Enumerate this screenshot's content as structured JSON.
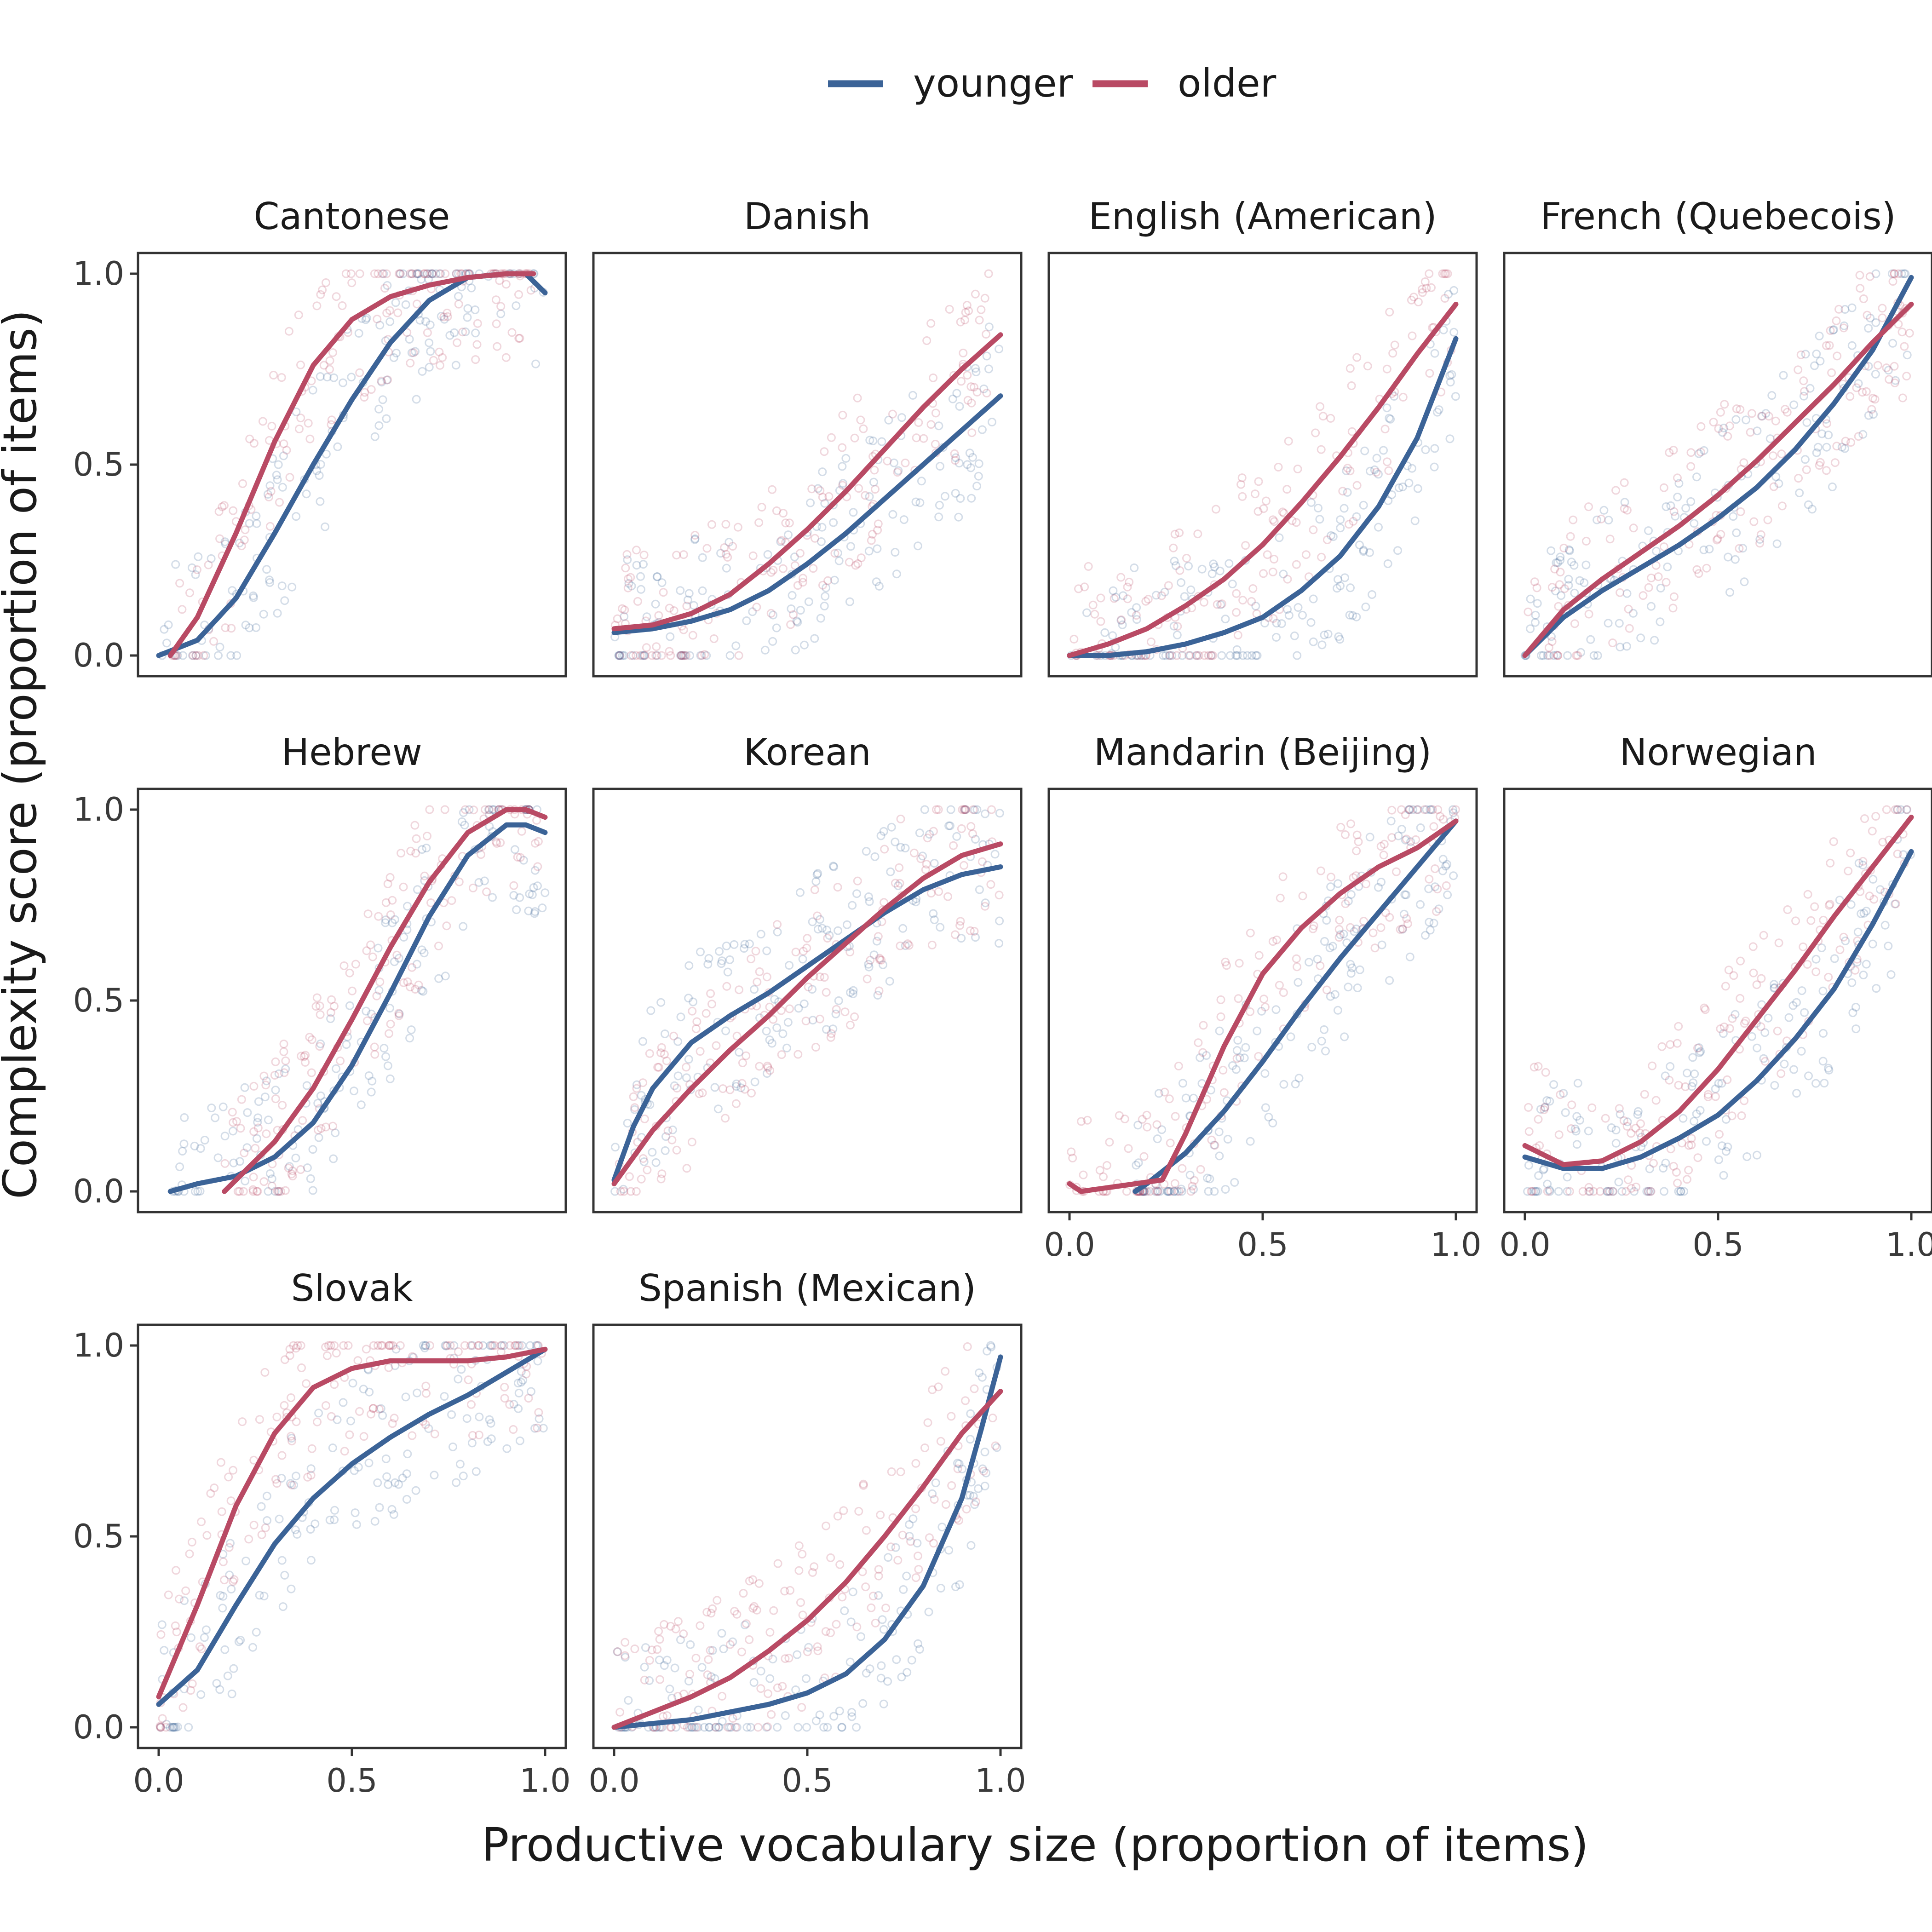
{
  "colors": {
    "younger": "#3b6397",
    "older": "#b94a64",
    "frame": "#333333"
  },
  "legend": {
    "position": "top-center",
    "items": [
      {
        "key": "younger",
        "label": "younger"
      },
      {
        "key": "older",
        "label": "older"
      }
    ]
  },
  "chart_data": {
    "type": "scatter",
    "facet_layout": {
      "columns": 4,
      "rows": 3
    },
    "xlabel": "Productive vocabulary size (proportion of items)",
    "ylabel": "Complexity score (proportion of items)",
    "xlim": [
      0,
      1
    ],
    "ylim": [
      0,
      1
    ],
    "x_ticks": [
      "0.0",
      "0.5",
      "1.0"
    ],
    "y_ticks": [
      "0.0",
      "0.5",
      "1.0"
    ],
    "grid": false,
    "points_note": "Each panel also shows many semi-transparent open-circle points per group; the fitted curves below summarize them.",
    "panels": [
      {
        "title": "Cantonese",
        "series": [
          {
            "name": "younger",
            "x": [
              0.0,
              0.1,
              0.2,
              0.3,
              0.4,
              0.5,
              0.6,
              0.7,
              0.8,
              0.9,
              0.95,
              1.0
            ],
            "y": [
              0.0,
              0.04,
              0.15,
              0.32,
              0.5,
              0.67,
              0.82,
              0.93,
              0.99,
              1.0,
              1.0,
              0.95
            ]
          },
          {
            "name": "older",
            "x": [
              0.03,
              0.1,
              0.2,
              0.3,
              0.4,
              0.5,
              0.6,
              0.7,
              0.8,
              0.9,
              0.97
            ],
            "y": [
              0.0,
              0.1,
              0.32,
              0.56,
              0.76,
              0.88,
              0.94,
              0.97,
              0.99,
              1.0,
              1.0
            ]
          }
        ]
      },
      {
        "title": "Danish",
        "series": [
          {
            "name": "younger",
            "x": [
              0.0,
              0.1,
              0.2,
              0.3,
              0.4,
              0.5,
              0.6,
              0.7,
              0.8,
              0.9,
              1.0
            ],
            "y": [
              0.06,
              0.07,
              0.09,
              0.12,
              0.17,
              0.24,
              0.32,
              0.41,
              0.5,
              0.59,
              0.68
            ]
          },
          {
            "name": "older",
            "x": [
              0.0,
              0.1,
              0.2,
              0.3,
              0.4,
              0.5,
              0.6,
              0.7,
              0.8,
              0.9,
              1.0
            ],
            "y": [
              0.07,
              0.08,
              0.11,
              0.16,
              0.24,
              0.33,
              0.43,
              0.54,
              0.65,
              0.75,
              0.84
            ]
          }
        ]
      },
      {
        "title": "English (American)",
        "series": [
          {
            "name": "younger",
            "x": [
              0.0,
              0.1,
              0.2,
              0.3,
              0.4,
              0.5,
              0.6,
              0.7,
              0.8,
              0.9,
              1.0
            ],
            "y": [
              0.0,
              0.0,
              0.01,
              0.03,
              0.06,
              0.1,
              0.17,
              0.26,
              0.39,
              0.57,
              0.83
            ]
          },
          {
            "name": "older",
            "x": [
              0.0,
              0.1,
              0.2,
              0.3,
              0.4,
              0.5,
              0.6,
              0.7,
              0.8,
              0.9,
              1.0
            ],
            "y": [
              0.0,
              0.03,
              0.07,
              0.13,
              0.2,
              0.29,
              0.4,
              0.52,
              0.65,
              0.79,
              0.92
            ]
          }
        ]
      },
      {
        "title": "French (Quebecois)",
        "series": [
          {
            "name": "younger",
            "x": [
              0.0,
              0.1,
              0.2,
              0.3,
              0.4,
              0.5,
              0.6,
              0.7,
              0.8,
              0.9,
              1.0
            ],
            "y": [
              0.0,
              0.1,
              0.17,
              0.23,
              0.29,
              0.36,
              0.44,
              0.54,
              0.66,
              0.8,
              0.99
            ]
          },
          {
            "name": "older",
            "x": [
              0.0,
              0.1,
              0.2,
              0.3,
              0.4,
              0.5,
              0.6,
              0.7,
              0.8,
              0.9,
              1.0
            ],
            "y": [
              0.0,
              0.12,
              0.2,
              0.27,
              0.34,
              0.42,
              0.51,
              0.61,
              0.71,
              0.82,
              0.92
            ]
          }
        ]
      },
      {
        "title": "Hebrew",
        "series": [
          {
            "name": "younger",
            "x": [
              0.03,
              0.1,
              0.2,
              0.3,
              0.4,
              0.5,
              0.6,
              0.7,
              0.8,
              0.9,
              0.95,
              1.0
            ],
            "y": [
              0.0,
              0.02,
              0.04,
              0.09,
              0.18,
              0.33,
              0.52,
              0.72,
              0.88,
              0.96,
              0.96,
              0.94
            ]
          },
          {
            "name": "older",
            "x": [
              0.17,
              0.2,
              0.3,
              0.4,
              0.5,
              0.6,
              0.7,
              0.8,
              0.9,
              0.95,
              1.0
            ],
            "y": [
              0.0,
              0.03,
              0.13,
              0.27,
              0.45,
              0.64,
              0.81,
              0.94,
              1.0,
              1.0,
              0.98
            ]
          }
        ]
      },
      {
        "title": "Korean",
        "series": [
          {
            "name": "younger",
            "x": [
              0.0,
              0.05,
              0.1,
              0.2,
              0.3,
              0.4,
              0.5,
              0.6,
              0.7,
              0.8,
              0.9,
              1.0
            ],
            "y": [
              0.03,
              0.17,
              0.27,
              0.39,
              0.46,
              0.52,
              0.59,
              0.66,
              0.73,
              0.79,
              0.83,
              0.85
            ]
          },
          {
            "name": "older",
            "x": [
              0.0,
              0.1,
              0.2,
              0.3,
              0.4,
              0.5,
              0.6,
              0.7,
              0.8,
              0.9,
              1.0
            ],
            "y": [
              0.02,
              0.16,
              0.27,
              0.37,
              0.46,
              0.56,
              0.65,
              0.74,
              0.82,
              0.88,
              0.91
            ]
          }
        ]
      },
      {
        "title": "Mandarin (Beijing)",
        "series": [
          {
            "name": "younger",
            "x": [
              0.17,
              0.2,
              0.3,
              0.4,
              0.5,
              0.6,
              0.7,
              0.8,
              0.9,
              1.0
            ],
            "y": [
              0.0,
              0.02,
              0.1,
              0.21,
              0.34,
              0.48,
              0.61,
              0.73,
              0.85,
              0.97
            ]
          },
          {
            "name": "older",
            "x": [
              0.0,
              0.03,
              0.24,
              0.3,
              0.4,
              0.5,
              0.6,
              0.7,
              0.8,
              0.9,
              1.0
            ],
            "y": [
              0.02,
              0.0,
              0.03,
              0.15,
              0.38,
              0.57,
              0.69,
              0.78,
              0.85,
              0.9,
              0.97
            ]
          }
        ]
      },
      {
        "title": "Norwegian",
        "series": [
          {
            "name": "younger",
            "x": [
              0.0,
              0.1,
              0.2,
              0.3,
              0.4,
              0.5,
              0.6,
              0.7,
              0.8,
              0.9,
              1.0
            ],
            "y": [
              0.09,
              0.06,
              0.06,
              0.09,
              0.14,
              0.2,
              0.29,
              0.4,
              0.53,
              0.7,
              0.89
            ]
          },
          {
            "name": "older",
            "x": [
              0.0,
              0.1,
              0.2,
              0.3,
              0.4,
              0.5,
              0.6,
              0.7,
              0.8,
              0.9,
              1.0
            ],
            "y": [
              0.12,
              0.07,
              0.08,
              0.13,
              0.21,
              0.32,
              0.45,
              0.58,
              0.72,
              0.85,
              0.98
            ]
          }
        ]
      },
      {
        "title": "Slovak",
        "series": [
          {
            "name": "younger",
            "x": [
              0.0,
              0.1,
              0.2,
              0.3,
              0.4,
              0.5,
              0.6,
              0.7,
              0.8,
              0.9,
              1.0
            ],
            "y": [
              0.06,
              0.15,
              0.32,
              0.48,
              0.6,
              0.69,
              0.76,
              0.82,
              0.87,
              0.93,
              0.99
            ]
          },
          {
            "name": "older",
            "x": [
              0.0,
              0.1,
              0.2,
              0.3,
              0.4,
              0.5,
              0.6,
              0.7,
              0.8,
              0.9,
              1.0
            ],
            "y": [
              0.08,
              0.32,
              0.58,
              0.77,
              0.89,
              0.94,
              0.96,
              0.96,
              0.96,
              0.97,
              0.99
            ]
          }
        ]
      },
      {
        "title": "Spanish (Mexican)",
        "series": [
          {
            "name": "younger",
            "x": [
              0.0,
              0.1,
              0.2,
              0.3,
              0.4,
              0.5,
              0.6,
              0.7,
              0.8,
              0.9,
              0.95,
              1.0
            ],
            "y": [
              0.0,
              0.01,
              0.02,
              0.04,
              0.06,
              0.09,
              0.14,
              0.23,
              0.37,
              0.6,
              0.78,
              0.97
            ]
          },
          {
            "name": "older",
            "x": [
              0.0,
              0.1,
              0.2,
              0.3,
              0.4,
              0.5,
              0.6,
              0.7,
              0.8,
              0.9,
              1.0
            ],
            "y": [
              0.0,
              0.04,
              0.08,
              0.13,
              0.2,
              0.28,
              0.38,
              0.5,
              0.63,
              0.77,
              0.88
            ]
          }
        ]
      }
    ]
  }
}
